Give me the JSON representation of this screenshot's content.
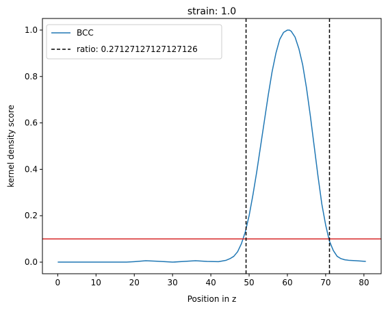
{
  "chart_data": {
    "type": "line",
    "title": "strain: 1.0",
    "xlabel": "Position in z",
    "ylabel": "kernel density score",
    "xlim": [
      -4,
      84.5
    ],
    "ylim": [
      -0.05,
      1.05
    ],
    "xticks": [
      0,
      10,
      20,
      30,
      40,
      50,
      60,
      70,
      80
    ],
    "yticks": [
      0.0,
      0.2,
      0.4,
      0.6,
      0.8,
      1.0
    ],
    "xtick_labels": [
      "0",
      "10",
      "20",
      "30",
      "40",
      "50",
      "60",
      "70",
      "80"
    ],
    "ytick_labels": [
      "0.0",
      "0.2",
      "0.4",
      "0.6",
      "0.8",
      "1.0"
    ],
    "grid": false,
    "legend_position": "top-left",
    "series": [
      {
        "name": "BCC",
        "color": "#1f77b4",
        "style": "solid",
        "x": [
          0,
          10,
          18,
          20,
          23,
          26,
          30,
          33,
          36,
          39,
          42,
          44,
          45,
          46,
          47,
          48,
          49,
          50,
          51,
          52,
          53,
          54,
          55,
          56,
          57,
          58,
          59,
          60,
          60.5,
          61,
          62,
          63,
          64,
          65,
          66,
          67,
          68,
          69,
          70,
          71,
          72,
          73,
          74,
          75,
          76,
          78,
          80.5
        ],
        "y": [
          0.0,
          0.0,
          0.0,
          0.002,
          0.006,
          0.004,
          0.0,
          0.003,
          0.006,
          0.003,
          0.002,
          0.008,
          0.015,
          0.025,
          0.045,
          0.08,
          0.13,
          0.2,
          0.29,
          0.39,
          0.5,
          0.61,
          0.72,
          0.82,
          0.9,
          0.96,
          0.99,
          1.0,
          1.0,
          0.995,
          0.97,
          0.92,
          0.85,
          0.75,
          0.63,
          0.5,
          0.37,
          0.25,
          0.16,
          0.09,
          0.05,
          0.025,
          0.015,
          0.01,
          0.008,
          0.006,
          0.003
        ]
      },
      {
        "name": "ratio: 0.27127127127127126",
        "color": "#000000",
        "style": "dashed",
        "vlines": [
          49.2,
          71.0
        ]
      }
    ],
    "hlines": [
      {
        "y": 0.1,
        "color": "#d62728"
      }
    ]
  }
}
